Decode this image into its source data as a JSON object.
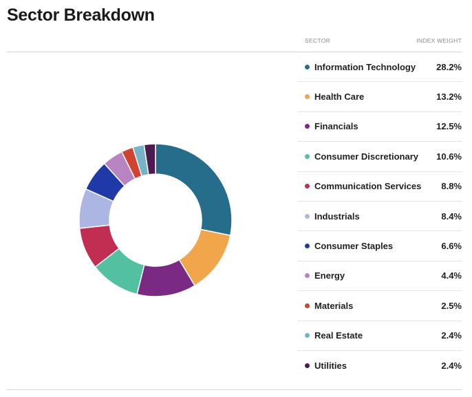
{
  "header": {
    "title": "Sector Breakdown",
    "col_sector": "SECTOR",
    "col_weight": "INDEX WEIGHT"
  },
  "chart_data": {
    "type": "pie",
    "title": "Sector Breakdown",
    "categories": [
      "Information Technology",
      "Health Care",
      "Financials",
      "Consumer Discretionary",
      "Communication Services",
      "Industrials",
      "Consumer Staples",
      "Energy",
      "Materials",
      "Real Estate",
      "Utilities"
    ],
    "values": [
      28.2,
      13.2,
      12.5,
      10.6,
      8.8,
      8.4,
      6.6,
      4.4,
      2.5,
      2.4,
      2.4
    ],
    "labels": [
      "28.2%",
      "13.2%",
      "12.5%",
      "10.6%",
      "8.8%",
      "8.4%",
      "6.6%",
      "4.4%",
      "2.5%",
      "2.4%",
      "2.4%"
    ],
    "colors": [
      "#256d8a",
      "#f2a64b",
      "#7a2a82",
      "#52c0a1",
      "#c12e52",
      "#abb6e2",
      "#1f3aa8",
      "#b884c2",
      "#d0432e",
      "#76b3c9",
      "#4b1b4f"
    ],
    "legend": "right",
    "donut": true
  }
}
